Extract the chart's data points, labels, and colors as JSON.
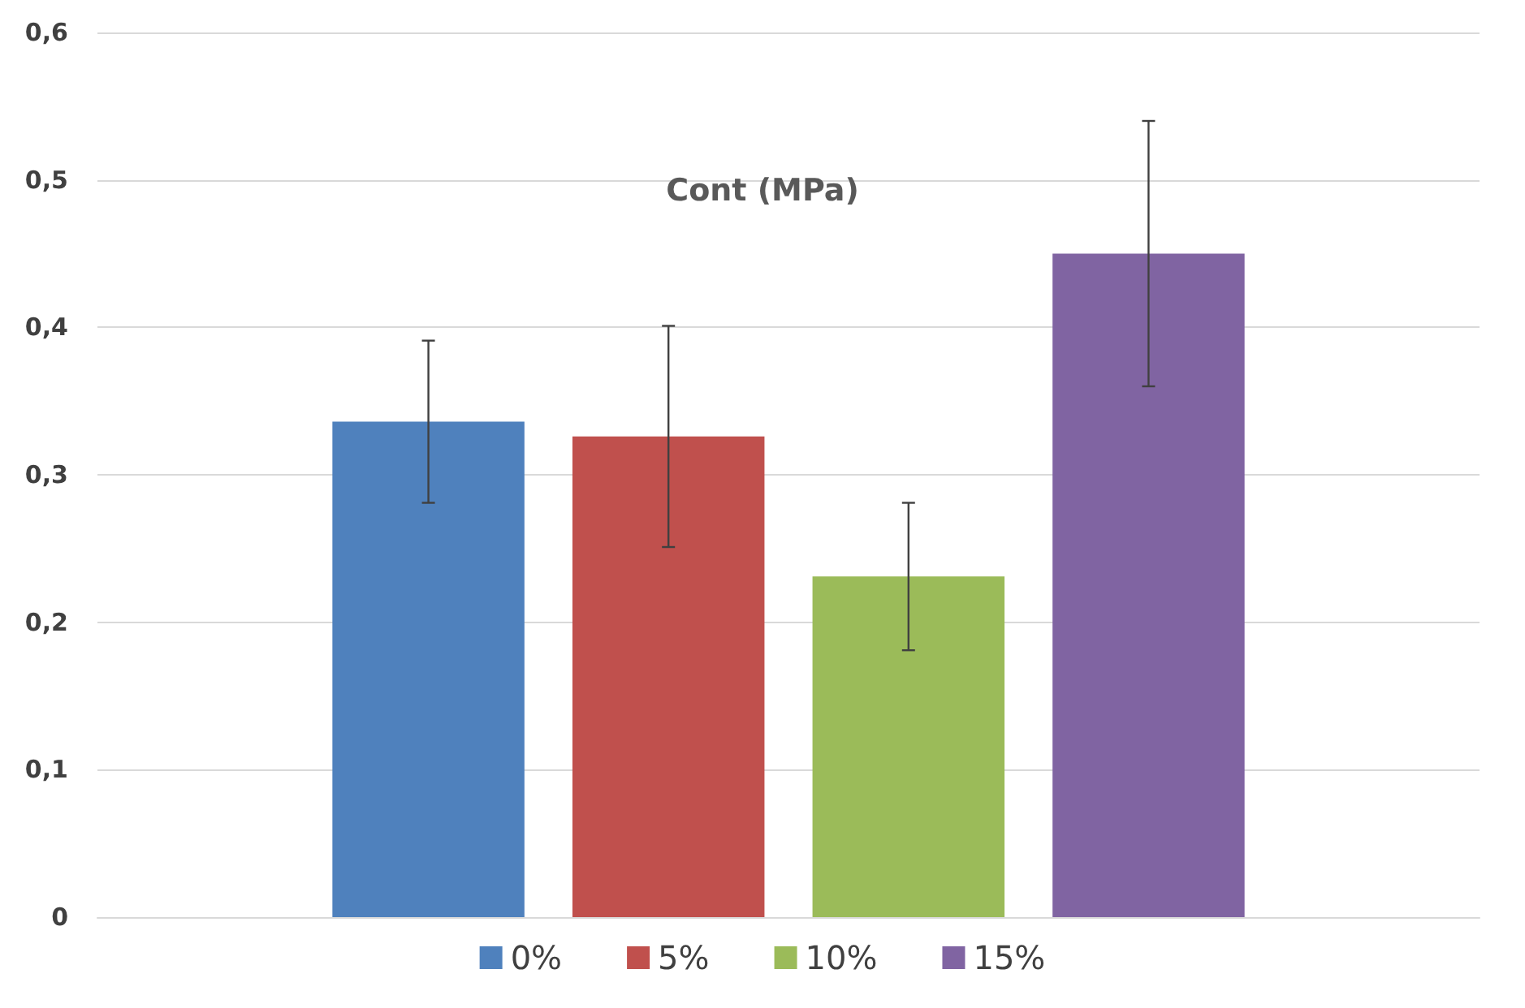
{
  "chart_data": {
    "type": "bar",
    "title": "Cont (MPa)",
    "categories": [
      null
    ],
    "series": [
      {
        "name": "0%",
        "color": "#4f81bd",
        "values": [
          0.336
        ],
        "errors": [
          0.055
        ]
      },
      {
        "name": "5%",
        "color": "#c0504d",
        "values": [
          0.326
        ],
        "errors": [
          0.075
        ]
      },
      {
        "name": "10%",
        "color": "#9bbb59",
        "values": [
          0.231
        ],
        "errors": [
          0.05
        ]
      },
      {
        "name": "15%",
        "color": "#8064a2",
        "values": [
          0.45
        ],
        "errors": [
          0.09
        ]
      }
    ],
    "ylim": [
      0,
      0.6
    ],
    "yticks": [
      0,
      {
        "value": 0.1,
        "label": "0,1"
      },
      {
        "value": 0.2,
        "label": "0,2"
      },
      {
        "value": 0.3,
        "label": "0,3"
      },
      {
        "value": 0.4,
        "label": "0,4"
      },
      {
        "value": 0.5,
        "label": "0,5"
      },
      {
        "value": 0.6,
        "label": "0,6"
      }
    ],
    "grid": "y",
    "legend": "bottom"
  }
}
